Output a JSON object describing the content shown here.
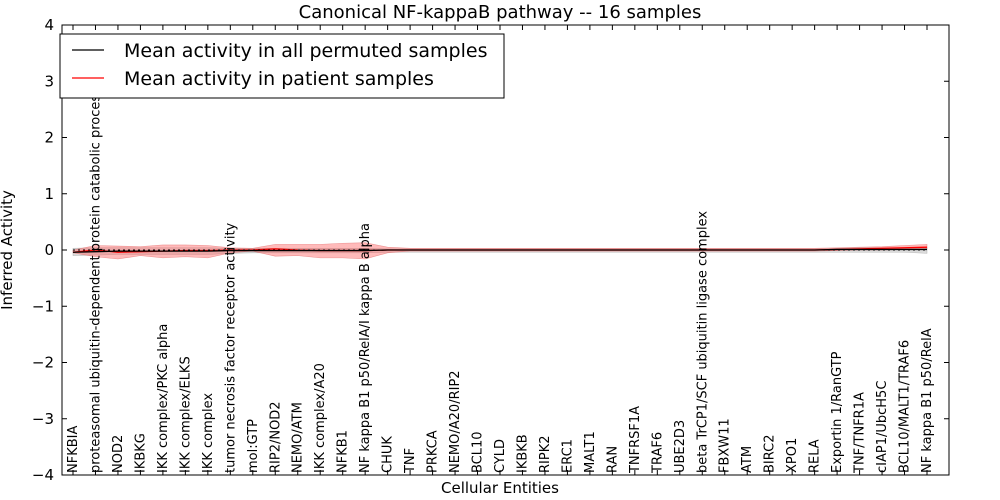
{
  "chart_data": {
    "type": "line",
    "title": "Canonical NF-kappaB pathway -- 16 samples",
    "xlabel": "Cellular Entities",
    "ylabel": "Inferred Activity",
    "ylim": [
      -4,
      4
    ],
    "yticks": [
      -4,
      -3,
      -2,
      -1,
      0,
      1,
      2,
      3,
      4
    ],
    "ytick_labels": [
      "−4",
      "−3",
      "−2",
      "−1",
      "0",
      "1",
      "2",
      "3",
      "4"
    ],
    "categories": [
      "NFKBIA",
      "proteasomal ubiquitin-dependent protein catabolic process",
      "NOD2",
      "IKBKG",
      "IKK complex/PKC alpha",
      "IKK complex/ELKS",
      "IKK complex",
      "tumor necrosis factor receptor activity",
      "mol:GTP",
      "RIP2/NOD2",
      "NEMO/ATM",
      "IKK complex/A20",
      "NFKB1",
      "NF kappa B1 p50/RelA/I kappa B alpha",
      "CHUK",
      "TNF",
      "PRKCA",
      "NEMO/A20/RIP2",
      "BCL10",
      "CYLD",
      "IKBKB",
      "RIPK2",
      "ERC1",
      "MALT1",
      "RAN",
      "TNFRSF1A",
      "TRAF6",
      "UBE2D3",
      "beta TrCP1/SCF ubiquitin ligase complex",
      "FBXW11",
      "ATM",
      "BIRC2",
      "XPO1",
      "RELA",
      "Exportin 1/RanGTP",
      "TNF/TNFR1A",
      "cIAP1/UbcH5C",
      "BCL10/MALT1/TRAF6",
      "NF kappa B1 p50/RelA"
    ],
    "series": [
      {
        "name": "Mean activity in all permuted samples",
        "color": "#000000",
        "values": [
          -0.04,
          -0.03,
          -0.02,
          -0.02,
          -0.02,
          -0.02,
          -0.02,
          -0.01,
          -0.01,
          -0.01,
          -0.01,
          -0.01,
          -0.01,
          -0.01,
          0.0,
          0.0,
          0.0,
          0.0,
          0.0,
          0.0,
          0.0,
          0.0,
          0.0,
          0.0,
          0.0,
          0.0,
          0.0,
          0.0,
          0.0,
          0.0,
          0.0,
          0.0,
          0.0,
          0.0,
          0.01,
          0.01,
          0.01,
          0.01,
          0.01
        ],
        "band_lower": [
          -0.1,
          -0.09,
          -0.08,
          -0.08,
          -0.08,
          -0.08,
          -0.08,
          -0.06,
          -0.05,
          -0.05,
          -0.05,
          -0.05,
          -0.05,
          -0.05,
          -0.04,
          -0.04,
          -0.04,
          -0.04,
          -0.04,
          -0.04,
          -0.04,
          -0.04,
          -0.04,
          -0.04,
          -0.04,
          -0.04,
          -0.04,
          -0.04,
          -0.04,
          -0.04,
          -0.04,
          -0.04,
          -0.04,
          -0.04,
          -0.04,
          -0.04,
          -0.04,
          -0.04,
          -0.06
        ],
        "band_upper": [
          0.03,
          0.04,
          0.04,
          0.04,
          0.04,
          0.04,
          0.04,
          0.03,
          0.03,
          0.03,
          0.03,
          0.03,
          0.03,
          0.03,
          0.02,
          0.02,
          0.02,
          0.02,
          0.02,
          0.02,
          0.02,
          0.02,
          0.02,
          0.02,
          0.02,
          0.02,
          0.02,
          0.02,
          0.02,
          0.02,
          0.02,
          0.02,
          0.02,
          0.02,
          0.03,
          0.04,
          0.04,
          0.04,
          0.05
        ]
      },
      {
        "name": "Mean activity in patient samples",
        "color": "#ff0000",
        "values": [
          -0.04,
          0.0,
          -0.04,
          -0.03,
          -0.02,
          -0.01,
          -0.01,
          0.0,
          0.0,
          0.02,
          0.0,
          -0.01,
          -0.01,
          -0.01,
          0.0,
          0.0,
          0.0,
          0.0,
          0.0,
          0.0,
          0.0,
          0.0,
          0.0,
          0.0,
          0.0,
          0.0,
          0.0,
          0.0,
          0.0,
          0.0,
          0.0,
          0.0,
          0.0,
          0.0,
          0.01,
          0.02,
          0.03,
          0.04,
          0.05
        ],
        "band_lower": [
          -0.05,
          -0.12,
          -0.16,
          -0.1,
          -0.14,
          -0.12,
          -0.14,
          -0.05,
          -0.02,
          -0.11,
          -0.1,
          -0.14,
          -0.14,
          -0.16,
          -0.05,
          -0.02,
          -0.02,
          -0.02,
          -0.02,
          -0.02,
          -0.02,
          -0.02,
          -0.02,
          -0.02,
          -0.02,
          -0.02,
          -0.02,
          -0.02,
          -0.02,
          -0.02,
          -0.02,
          -0.02,
          -0.02,
          -0.02,
          -0.01,
          0.0,
          0.0,
          0.01,
          0.02
        ],
        "band_upper": [
          0.0,
          0.08,
          0.07,
          0.06,
          0.09,
          0.09,
          0.08,
          0.04,
          0.03,
          0.1,
          0.1,
          0.1,
          0.12,
          0.13,
          0.05,
          0.03,
          0.03,
          0.03,
          0.03,
          0.03,
          0.03,
          0.03,
          0.03,
          0.03,
          0.03,
          0.03,
          0.03,
          0.03,
          0.03,
          0.03,
          0.03,
          0.03,
          0.03,
          0.03,
          0.04,
          0.05,
          0.06,
          0.08,
          0.1
        ]
      }
    ],
    "legend_position": "top-left",
    "grid": false
  }
}
